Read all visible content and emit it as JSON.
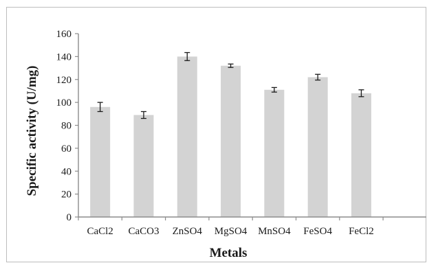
{
  "chart_data": {
    "type": "bar",
    "categories": [
      "CaCl2",
      "CaCO3",
      "ZnSO4",
      "MgSO4",
      "MnSO4",
      "FeSO4",
      "FeCl2"
    ],
    "values": [
      96,
      89,
      140,
      132,
      111,
      122,
      108
    ],
    "errors": [
      4,
      3,
      3.5,
      1.5,
      2,
      2.5,
      3
    ],
    "title": "",
    "xlabel": "Metals",
    "ylabel": "Specific activity (U/mg)",
    "ylim": [
      0,
      160
    ],
    "yticks": [
      "0",
      "20",
      "40",
      "60",
      "80",
      "100",
      "120",
      "140",
      "160"
    ],
    "grid": false,
    "bar_color": "#d3d3d3"
  }
}
